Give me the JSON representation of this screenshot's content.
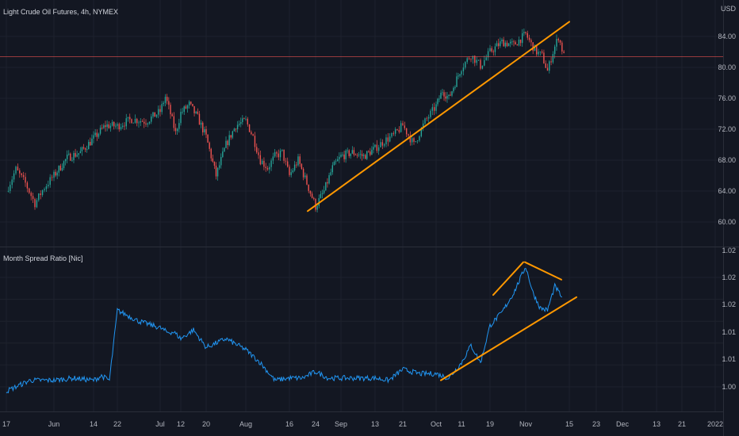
{
  "main_pane": {
    "title": "Light Crude Oil Futures, 4h, NYMEX",
    "currency": "USD",
    "price_labels": [
      "84.00",
      "80.00",
      "76.00",
      "72.00",
      "68.00",
      "64.00",
      "60.00"
    ]
  },
  "indicator_pane": {
    "title": "Month Spread Ratio [Nic]",
    "value_labels": [
      "1.02",
      "1.02",
      "1.02",
      "1.01",
      "1.01",
      "1.00"
    ]
  },
  "time_labels": [
    "17",
    "Jun",
    "14",
    "22",
    "Jul",
    "12",
    "20",
    "Aug",
    "16",
    "24",
    "Sep",
    "13",
    "21",
    "Oct",
    "11",
    "19",
    "Nov",
    "15",
    "23",
    "Dec",
    "13",
    "21",
    "2022"
  ],
  "colors": {
    "background": "#131722",
    "grid": "#1e222d",
    "up_candle": "#26a69a",
    "down_candle": "#ef5350",
    "trendline": "#ff9800",
    "horizontal_line": "#ef5350",
    "spread_line": "#2196f3"
  },
  "chart_data": [
    {
      "type": "candlestick",
      "title": "Light Crude Oil Futures, 4h, NYMEX",
      "ylabel": "USD",
      "ylim": [
        57,
        87
      ],
      "x": [
        "May 17",
        "Jun",
        "Jun 14",
        "Jun 22",
        "Jul",
        "Jul 12",
        "Jul 20",
        "Aug",
        "Aug 16",
        "Aug 24",
        "Sep",
        "Sep 13",
        "Sep 21",
        "Oct",
        "Oct 11",
        "Oct 19",
        "Nov",
        "Nov 15"
      ],
      "close_path": [
        {
          "x": "May 17",
          "y": 64.0
        },
        {
          "x": "May 17",
          "y": 66.8
        },
        {
          "x": "May 17",
          "y": 65.0
        },
        {
          "x": "May 17",
          "y": 62.4
        },
        {
          "x": "May 17",
          "y": 64.5
        },
        {
          "x": "Jun",
          "y": 66.0
        },
        {
          "x": "Jun",
          "y": 68.3
        },
        {
          "x": "Jun",
          "y": 69.0
        },
        {
          "x": "Jun 14",
          "y": 70.8
        },
        {
          "x": "Jun 14",
          "y": 72.5
        },
        {
          "x": "Jun 22",
          "y": 72.4
        },
        {
          "x": "Jun 22",
          "y": 73.3
        },
        {
          "x": "Jun 22",
          "y": 73.0
        },
        {
          "x": "Jul",
          "y": 74.3
        },
        {
          "x": "Jul",
          "y": 76.2
        },
        {
          "x": "Jul",
          "y": 74.0
        },
        {
          "x": "Jul",
          "y": 71.5
        },
        {
          "x": "Jul 12",
          "y": 74.1
        },
        {
          "x": "Jul 12",
          "y": 75.2
        },
        {
          "x": "Jul 12",
          "y": 73.5
        },
        {
          "x": "Jul 20",
          "y": 71.0
        },
        {
          "x": "Jul 20",
          "y": 66.0
        },
        {
          "x": "Jul 20",
          "y": 70.0
        },
        {
          "x": "Jul 20",
          "y": 72.5
        },
        {
          "x": "Aug",
          "y": 73.1
        },
        {
          "x": "Aug",
          "y": 71.0
        },
        {
          "x": "Aug",
          "y": 68.0
        },
        {
          "x": "Aug",
          "y": 67.0
        },
        {
          "x": "Aug",
          "y": 68.5
        },
        {
          "x": "Aug",
          "y": 69.0
        },
        {
          "x": "Aug 16",
          "y": 66.0
        },
        {
          "x": "Aug 16",
          "y": 68.0
        },
        {
          "x": "Aug 16",
          "y": 65.0
        },
        {
          "x": "Aug 24",
          "y": 62.0
        },
        {
          "x": "Aug 24",
          "y": 64.0
        },
        {
          "x": "Aug 24",
          "y": 67.0
        },
        {
          "x": "Sep",
          "y": 68.5
        },
        {
          "x": "Sep",
          "y": 69.0
        },
        {
          "x": "Sep",
          "y": 68.5
        },
        {
          "x": "Sep 13",
          "y": 69.5
        },
        {
          "x": "Sep 13",
          "y": 70.5
        },
        {
          "x": "Sep 13",
          "y": 71.2
        },
        {
          "x": "Sep 21",
          "y": 72.5
        },
        {
          "x": "Sep 21",
          "y": 70.0
        },
        {
          "x": "Sep 21",
          "y": 73.0
        },
        {
          "x": "Oct",
          "y": 75.0
        },
        {
          "x": "Oct",
          "y": 77.0
        },
        {
          "x": "Oct",
          "y": 76.0
        },
        {
          "x": "Oct",
          "y": 78.0
        },
        {
          "x": "Oct 11",
          "y": 80.0
        },
        {
          "x": "Oct 11",
          "y": 81.6
        },
        {
          "x": "Oct 11",
          "y": 80.2
        },
        {
          "x": "Oct 19",
          "y": 82.0
        },
        {
          "x": "Oct 19",
          "y": 83.3
        },
        {
          "x": "Oct 19",
          "y": 82.9
        },
        {
          "x": "Nov",
          "y": 84.3
        },
        {
          "x": "Nov",
          "y": 83.0
        },
        {
          "x": "Nov",
          "y": 82.0
        },
        {
          "x": "Nov",
          "y": 81.5
        },
        {
          "x": "Nov",
          "y": 79.5
        },
        {
          "x": "Nov",
          "y": 82.0
        },
        {
          "x": "Nov",
          "y": 84.0
        },
        {
          "x": "Nov",
          "y": 81.5
        }
      ],
      "horizontal_level": 81.4,
      "trendlines": [
        {
          "from": {
            "x": "Aug 24",
            "y": 61.4
          },
          "to": {
            "x": "Nov 15",
            "y": 85.9
          }
        }
      ],
      "grid": true,
      "legend": "none"
    },
    {
      "type": "line",
      "title": "Month Spread Ratio [Nic]",
      "x": [
        "May 17",
        "Jun",
        "Jun 14",
        "Jun 22",
        "Jul",
        "Jul 12",
        "Jul 20",
        "Aug",
        "Aug 16",
        "Aug 24",
        "Sep",
        "Sep 13",
        "Sep 21",
        "Oct",
        "Oct 11",
        "Oct 19",
        "Nov",
        "Nov 15"
      ],
      "ylim": [
        0.998,
        1.03
      ],
      "values": [
        {
          "x": "May 17",
          "y": 0.999
        },
        {
          "x": "May 17",
          "y": 1.0015
        },
        {
          "x": "Jun",
          "y": 1.0015
        },
        {
          "x": "Jun",
          "y": 1.002
        },
        {
          "x": "Jun 14",
          "y": 1.0015
        },
        {
          "x": "Jun 14",
          "y": 1.0025
        },
        {
          "x": "Jun 14",
          "y": 1.0015
        },
        {
          "x": "Jun 22",
          "y": 1.0175
        },
        {
          "x": "Jun 22",
          "y": 1.015
        },
        {
          "x": "Jul",
          "y": 1.0135
        },
        {
          "x": "Jul",
          "y": 1.0125
        },
        {
          "x": "Jul",
          "y": 1.0125
        },
        {
          "x": "Jul 12",
          "y": 1.011
        },
        {
          "x": "Jul 12",
          "y": 1.013
        },
        {
          "x": "Jul 20",
          "y": 1.009
        },
        {
          "x": "Jul 20",
          "y": 1.011
        },
        {
          "x": "Aug",
          "y": 1.0085
        },
        {
          "x": "Aug",
          "y": 1.0055
        },
        {
          "x": "Aug",
          "y": 1.0015
        },
        {
          "x": "Aug 16",
          "y": 1.002
        },
        {
          "x": "Aug 16",
          "y": 1.002
        },
        {
          "x": "Aug 24",
          "y": 1.0035
        },
        {
          "x": "Aug 24",
          "y": 1.002
        },
        {
          "x": "Sep",
          "y": 1.002
        },
        {
          "x": "Sep 13",
          "y": 1.002
        },
        {
          "x": "Sep 13",
          "y": 1.0015
        },
        {
          "x": "Sep 21",
          "y": 1.004
        },
        {
          "x": "Sep 21",
          "y": 1.003
        },
        {
          "x": "Oct",
          "y": 1.003
        },
        {
          "x": "Oct",
          "y": 1.002
        },
        {
          "x": "Oct 11",
          "y": 1.0055
        },
        {
          "x": "Oct 11",
          "y": 1.0095
        },
        {
          "x": "Oct 11",
          "y": 1.0055
        },
        {
          "x": "Oct 19",
          "y": 1.014
        },
        {
          "x": "Oct 19",
          "y": 1.017
        },
        {
          "x": "Oct 19",
          "y": 1.0215
        },
        {
          "x": "Nov",
          "y": 1.0275
        },
        {
          "x": "Nov",
          "y": 1.0215
        },
        {
          "x": "Nov",
          "y": 1.018
        },
        {
          "x": "Nov",
          "y": 1.0175
        },
        {
          "x": "Nov",
          "y": 1.023
        },
        {
          "x": "Nov",
          "y": 1.0205
        }
      ],
      "trendlines": [
        {
          "from": {
            "x": "Oct",
            "y": 1.0015
          },
          "to": {
            "x": "Nov 15",
            "y": 1.0205
          }
        },
        {
          "from": {
            "x": "Oct 19",
            "y": 1.021
          },
          "to": {
            "x": "Nov",
            "y": 1.0285
          }
        },
        {
          "from": {
            "x": "Nov",
            "y": 1.0285
          },
          "to": {
            "x": "Nov",
            "y": 1.0245
          }
        }
      ],
      "grid": true,
      "legend": "none"
    }
  ]
}
